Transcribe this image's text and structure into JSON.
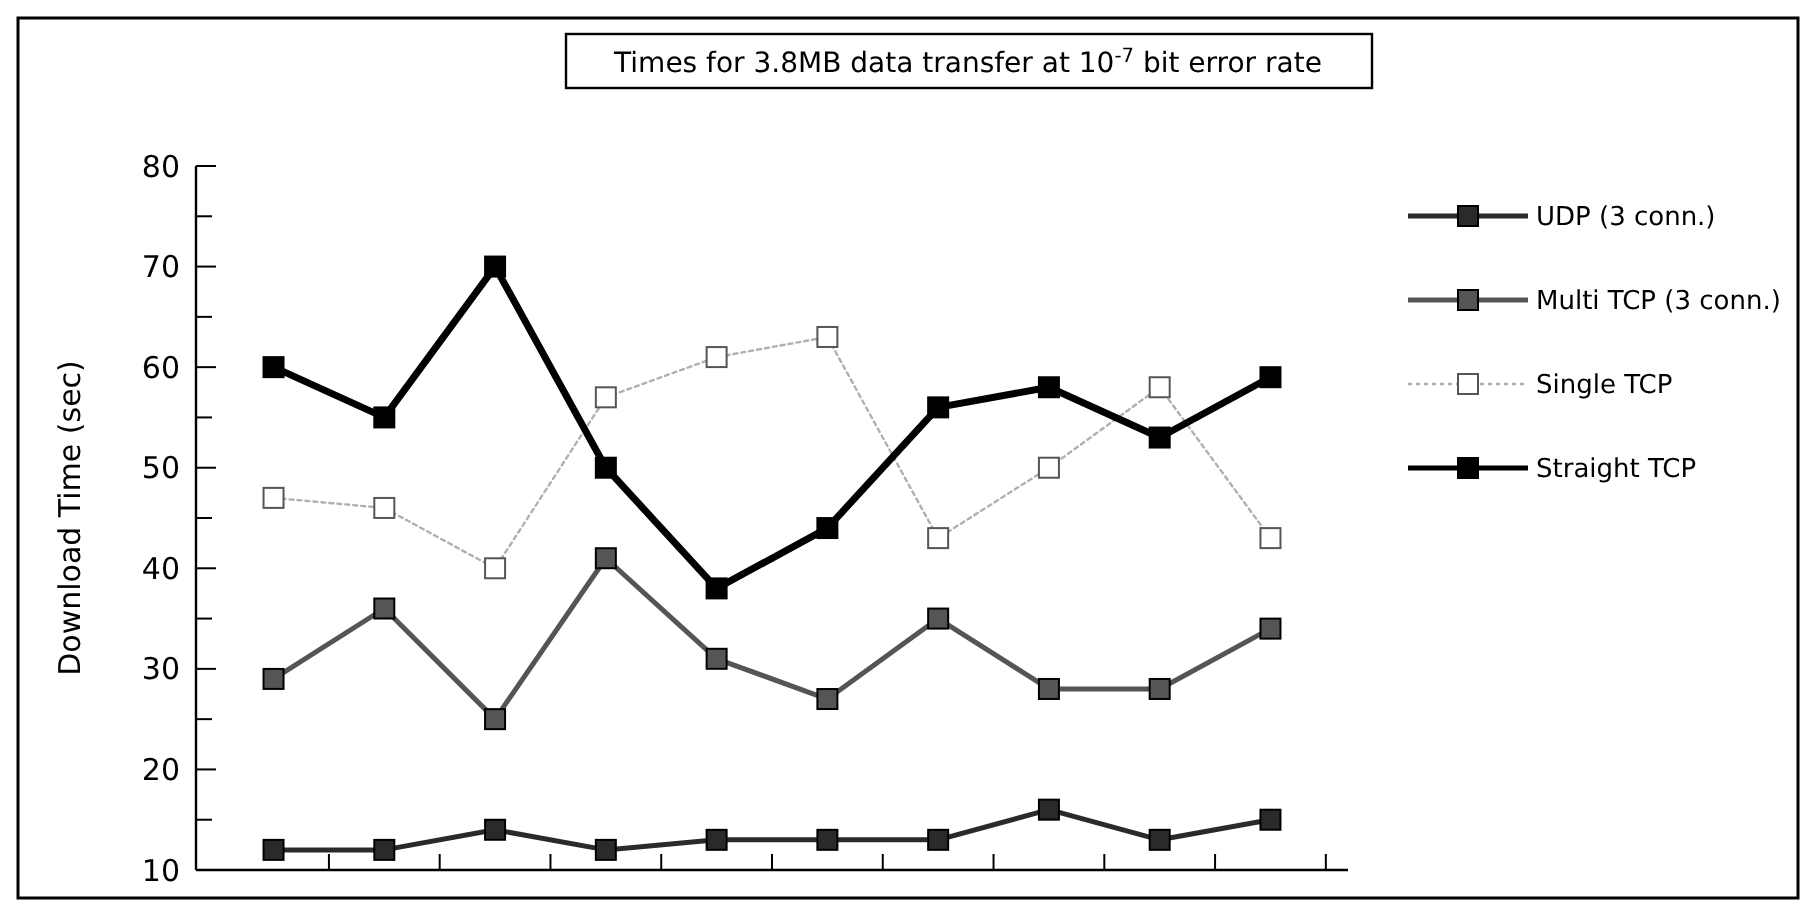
{
  "chart_data": {
    "type": "line",
    "title": "Times for 3.8MB data transfer at 10$^{-7}$ bit error rate",
    "ylabel": "Download Time (sec)",
    "categories": [
      null,
      null,
      null,
      null,
      null,
      null,
      null,
      null,
      null,
      null
    ],
    "ylim": [
      10,
      80
    ],
    "yticks": [
      10,
      {
        "value": 15,
        "label": null
      },
      20,
      {
        "value": 25,
        "label": null
      },
      30,
      {
        "value": 35,
        "label": null
      },
      40,
      {
        "value": 45,
        "label": null
      },
      50,
      {
        "value": 55,
        "label": null
      },
      60,
      {
        "value": 65,
        "label": null
      },
      70,
      {
        "value": 75,
        "label": null
      },
      80
    ],
    "grid": false,
    "legend": "right",
    "marker": "square",
    "series": [
      {
        "name": "UDP (3 conn.)",
        "color": "#2a2a2a",
        "values": [
          12,
          12,
          14,
          12,
          13,
          13,
          13,
          16,
          13,
          15
        ]
      },
      {
        "name": "Multi TCP (3 conn.)",
        "color": "#555555",
        "values": [
          29,
          36,
          25,
          41,
          31,
          27,
          35,
          28,
          28,
          34
        ]
      },
      {
        "name": "Single TCP",
        "color": "#b0b0b0",
        "line_style": "dotted",
        "values": [
          47,
          46,
          40,
          57,
          61,
          63,
          43,
          50,
          58,
          43
        ]
      },
      {
        "name": "Straight TCP",
        "color": "#000000",
        "values": [
          60,
          55,
          70,
          50,
          38,
          44,
          56,
          58,
          53,
          59
        ]
      }
    ]
  }
}
